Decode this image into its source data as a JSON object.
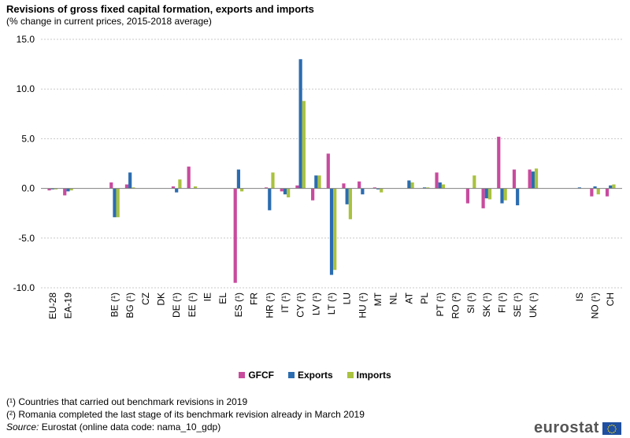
{
  "chart_data": {
    "type": "bar",
    "title": "Revisions of gross fixed capital formation, exports and imports",
    "subtitle": "(% change in current prices, 2015-2018 average)",
    "ylim": [
      -10,
      15
    ],
    "yticks": [
      "15.0",
      "10.0",
      "5.0",
      "0.0",
      "-5.0",
      "-10.0"
    ],
    "ytick_values": [
      15,
      10,
      5,
      0,
      -5,
      -10
    ],
    "categories": [
      "EU-28",
      "EA-19",
      "BE (¹)",
      "BG (¹)",
      "CZ",
      "DK",
      "DE (¹)",
      "EE (¹)",
      "IE",
      "EL",
      "ES (¹)",
      "FR",
      "HR (¹)",
      "IT (¹)",
      "CY (¹)",
      "LV (¹)",
      "LT (¹)",
      "LU",
      "HU (¹)",
      "MT",
      "NL",
      "AT",
      "PL",
      "PT (¹)",
      "RO (²)",
      "SI (¹)",
      "SK (¹)",
      "FI (¹)",
      "SE (¹)",
      "UK (¹)",
      "IS",
      "NO (¹)",
      "CH"
    ],
    "series": [
      {
        "name": "GFCF",
        "color": "#C84B9E",
        "values": [
          -0.2,
          -0.7,
          0.6,
          0.4,
          0,
          0,
          0.2,
          2.2,
          0,
          0,
          -9.5,
          0,
          0.1,
          -0.3,
          0.3,
          -1.2,
          3.5,
          0.5,
          0.7,
          0.1,
          0,
          0,
          0,
          1.6,
          0,
          -1.5,
          -2.0,
          5.2,
          1.9,
          1.9,
          0,
          -0.8,
          -0.8
        ]
      },
      {
        "name": "Exports",
        "color": "#2B6CB0",
        "values": [
          -0.1,
          -0.3,
          -2.9,
          1.6,
          0,
          0,
          -0.4,
          0,
          0,
          0,
          1.9,
          0,
          -2.2,
          -0.6,
          13.0,
          1.3,
          -8.7,
          -1.6,
          -0.6,
          -0.1,
          0,
          0.8,
          0.1,
          0.6,
          0,
          0,
          -1.0,
          -1.5,
          -1.7,
          1.7,
          0.1,
          0.2,
          0.3
        ]
      },
      {
        "name": "Imports",
        "color": "#A9C23F",
        "values": [
          -0.1,
          -0.2,
          -2.9,
          0.1,
          0,
          0,
          0.9,
          0.2,
          0,
          0,
          -0.3,
          0,
          1.6,
          -0.9,
          8.8,
          1.3,
          -8.2,
          -3.1,
          0,
          -0.4,
          0,
          0.6,
          0.1,
          0.4,
          0,
          1.3,
          -1.1,
          -1.2,
          0,
          2.0,
          0,
          -0.6,
          0.4
        ]
      }
    ],
    "legend_position": "bottom-center",
    "grid": true
  },
  "footnotes": {
    "note1": "(¹) Countries that carried out benchmark revisions in 2019",
    "note2": "(²) Romania completed the last stage of its benchmark revision already in March 2019",
    "source_label": "Source:",
    "source_text": " Eurostat (online data code: nama_10_gdp)"
  },
  "logo": {
    "text": "eurostat"
  },
  "colors": {
    "grid": "#C8C8C8",
    "axis": "#808080",
    "flag_blue": "#1F4FA0",
    "flag_star": "#FFDD00"
  }
}
